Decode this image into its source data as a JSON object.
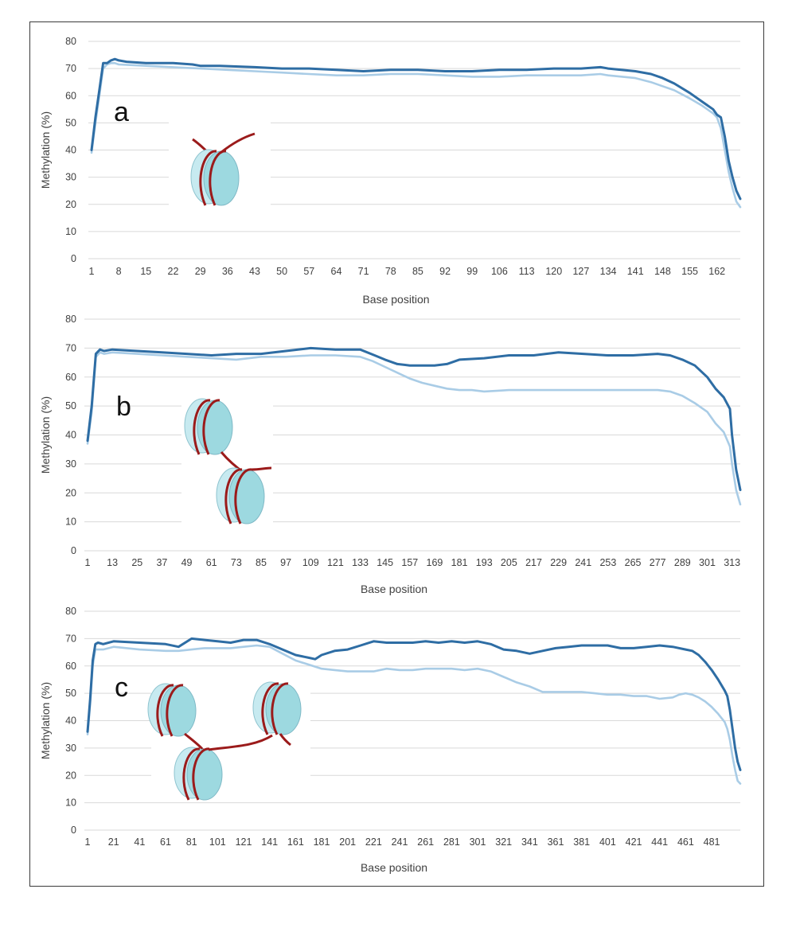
{
  "figure": {
    "colors": {
      "dark_series": "#2e6da4",
      "light_series": "#a9cce6",
      "grid": "#d9d9d9",
      "dna": "#9b1b1b",
      "histone_fill": "#9dd9e0"
    }
  },
  "chart_data": [
    {
      "type": "line",
      "panel_label": "a",
      "xlabel": "Base position",
      "ylabel": "Methylation (%)",
      "ylim": [
        0,
        80
      ],
      "yticks": [
        0,
        10,
        20,
        30,
        40,
        50,
        60,
        70,
        80
      ],
      "xlim": [
        1,
        168
      ],
      "xticks": [
        1,
        8,
        15,
        22,
        29,
        36,
        43,
        50,
        57,
        64,
        71,
        78,
        85,
        92,
        99,
        106,
        113,
        120,
        127,
        134,
        141,
        148,
        155,
        162
      ],
      "grid": true,
      "legend": "none",
      "nucleosome_icon": "one-nucleosome",
      "series": [
        {
          "color": "dark",
          "x": [
            1,
            2,
            3,
            4,
            5,
            6,
            7,
            8,
            10,
            15,
            20,
            22,
            27,
            29,
            34,
            43,
            50,
            57,
            64,
            71,
            78,
            85,
            92,
            99,
            106,
            113,
            120,
            127,
            132,
            134,
            141,
            145,
            148,
            151,
            155,
            158,
            161,
            162,
            163,
            164,
            165,
            166,
            167,
            168
          ],
          "values": [
            40,
            52,
            62,
            72,
            72,
            73,
            73.5,
            73,
            72.5,
            72,
            72,
            72,
            71.5,
            71,
            71,
            70.5,
            70,
            70,
            69.5,
            69,
            69.5,
            69.5,
            69,
            69,
            69.5,
            69.5,
            70,
            70,
            70.5,
            70,
            69,
            68,
            66.5,
            64.5,
            61,
            58,
            55,
            53,
            52,
            45,
            36,
            30,
            25,
            22
          ]
        },
        {
          "color": "light",
          "x": [
            1,
            2,
            3,
            4,
            5,
            6,
            7,
            8,
            15,
            22,
            29,
            36,
            43,
            50,
            57,
            64,
            71,
            78,
            85,
            92,
            99,
            106,
            113,
            120,
            127,
            132,
            134,
            141,
            145,
            148,
            151,
            155,
            158,
            161,
            162,
            163,
            164,
            165,
            166,
            167,
            168
          ],
          "values": [
            39,
            50,
            60,
            70,
            71.5,
            72,
            72,
            71.5,
            71,
            70.5,
            70,
            69.5,
            69,
            68.5,
            68,
            67.5,
            67.5,
            68,
            68,
            67.5,
            67,
            67,
            67.5,
            67.5,
            67.5,
            68,
            67.5,
            66.5,
            65,
            63.5,
            62,
            59,
            56.5,
            53.5,
            52,
            48,
            40,
            32,
            26,
            21,
            19
          ]
        }
      ]
    },
    {
      "type": "line",
      "panel_label": "b",
      "xlabel": "Base position",
      "ylabel": "Methylation (%)",
      "ylim": [
        0,
        80
      ],
      "yticks": [
        0,
        10,
        20,
        30,
        40,
        50,
        60,
        70,
        80
      ],
      "xlim": [
        1,
        317
      ],
      "xticks": [
        1,
        13,
        25,
        37,
        49,
        61,
        73,
        85,
        97,
        109,
        121,
        133,
        145,
        157,
        169,
        181,
        193,
        205,
        217,
        229,
        241,
        253,
        265,
        277,
        289,
        301,
        313
      ],
      "grid": true,
      "legend": "none",
      "nucleosome_icon": "two-nucleosomes",
      "series": [
        {
          "color": "dark",
          "x": [
            1,
            3,
            5,
            7,
            9,
            13,
            25,
            37,
            49,
            61,
            73,
            85,
            97,
            109,
            121,
            133,
            140,
            145,
            151,
            157,
            169,
            175,
            181,
            193,
            205,
            217,
            229,
            241,
            253,
            265,
            277,
            283,
            289,
            295,
            301,
            305,
            309,
            312,
            313,
            315,
            317
          ],
          "values": [
            38,
            50,
            68,
            69.5,
            69,
            69.5,
            69,
            68.5,
            68,
            67.5,
            68,
            68,
            69,
            70,
            69.5,
            69.5,
            67.5,
            66,
            64.5,
            64,
            64,
            64.5,
            66,
            66.5,
            67.5,
            67.5,
            68.5,
            68,
            67.5,
            67.5,
            68,
            67.5,
            66,
            64,
            60,
            56,
            53,
            49,
            40,
            28,
            21
          ]
        },
        {
          "color": "light",
          "x": [
            1,
            3,
            5,
            7,
            9,
            13,
            25,
            37,
            49,
            61,
            73,
            85,
            97,
            109,
            121,
            133,
            139,
            145,
            151,
            157,
            163,
            169,
            175,
            181,
            187,
            193,
            205,
            217,
            229,
            241,
            253,
            265,
            277,
            283,
            289,
            295,
            301,
            305,
            309,
            312,
            313,
            315,
            317
          ],
          "values": [
            37,
            48,
            67,
            68.5,
            68,
            68.5,
            68,
            67.5,
            67,
            66.5,
            66,
            67,
            67,
            67.5,
            67.5,
            67,
            65.5,
            63.5,
            61.5,
            59.5,
            58,
            57,
            56,
            55.5,
            55.5,
            55,
            55.5,
            55.5,
            55.5,
            55.5,
            55.5,
            55.5,
            55.5,
            55,
            53.5,
            51,
            48,
            44,
            41,
            36,
            30,
            21,
            16
          ]
        }
      ]
    },
    {
      "type": "line",
      "panel_label": "c",
      "xlabel": "Base position",
      "ylabel": "Methylation (%)",
      "ylim": [
        0,
        80
      ],
      "yticks": [
        0,
        10,
        20,
        30,
        40,
        50,
        60,
        70,
        80
      ],
      "xlim": [
        1,
        503
      ],
      "xticks": [
        1,
        21,
        41,
        61,
        81,
        101,
        121,
        141,
        161,
        181,
        201,
        221,
        241,
        261,
        281,
        301,
        321,
        341,
        361,
        381,
        401,
        421,
        441,
        461,
        481
      ],
      "grid": true,
      "legend": "none",
      "nucleosome_icon": "three-nucleosomes",
      "series": [
        {
          "color": "dark",
          "x": [
            1,
            3,
            5,
            7,
            9,
            13,
            21,
            41,
            61,
            71,
            81,
            91,
            101,
            111,
            121,
            131,
            141,
            151,
            161,
            171,
            176,
            181,
            191,
            201,
            211,
            221,
            231,
            241,
            251,
            261,
            271,
            281,
            291,
            301,
            311,
            321,
            331,
            341,
            351,
            361,
            371,
            381,
            391,
            401,
            411,
            421,
            431,
            441,
            451,
            461,
            466,
            471,
            476,
            481,
            486,
            491,
            493,
            495,
            497,
            499,
            501,
            503
          ],
          "values": [
            36,
            48,
            62,
            68,
            68.5,
            68,
            69,
            68.5,
            68,
            67,
            70,
            69.5,
            69,
            68.5,
            69.5,
            69.5,
            68,
            66,
            64,
            63,
            62.5,
            64,
            65.5,
            66,
            67.5,
            69,
            68.5,
            68.5,
            68.5,
            69,
            68.5,
            69,
            68.5,
            69,
            68,
            66,
            65.5,
            64.5,
            65.5,
            66.5,
            67,
            67.5,
            67.5,
            67.5,
            66.5,
            66.5,
            67,
            67.5,
            67,
            66,
            65.5,
            64,
            61.5,
            58.5,
            55,
            51,
            49,
            44,
            37,
            30,
            25,
            22
          ]
        },
        {
          "color": "light",
          "x": [
            1,
            3,
            5,
            7,
            9,
            13,
            21,
            41,
            61,
            71,
            81,
            91,
            101,
            111,
            121,
            131,
            141,
            151,
            161,
            171,
            181,
            191,
            201,
            211,
            221,
            231,
            241,
            251,
            261,
            271,
            281,
            291,
            301,
            311,
            321,
            331,
            341,
            351,
            361,
            371,
            381,
            391,
            401,
            411,
            421,
            431,
            441,
            451,
            456,
            461,
            466,
            471,
            476,
            481,
            486,
            491,
            493,
            495,
            497,
            499,
            501,
            503
          ],
          "values": [
            35,
            46,
            60,
            66,
            66,
            66,
            67,
            66,
            65.5,
            65.5,
            66,
            66.5,
            66.5,
            66.5,
            67,
            67.5,
            67,
            64.5,
            62,
            60.5,
            59,
            58.5,
            58,
            58,
            58,
            59,
            58.5,
            58.5,
            59,
            59,
            59,
            58.5,
            59,
            58,
            56,
            54,
            52.5,
            50.5,
            50.5,
            50.5,
            50.5,
            50,
            49.5,
            49.5,
            49,
            49,
            48,
            48.5,
            49.5,
            50,
            49.5,
            48.5,
            47,
            45,
            42.5,
            39.5,
            37,
            33,
            27,
            22,
            18,
            17
          ]
        }
      ]
    }
  ]
}
